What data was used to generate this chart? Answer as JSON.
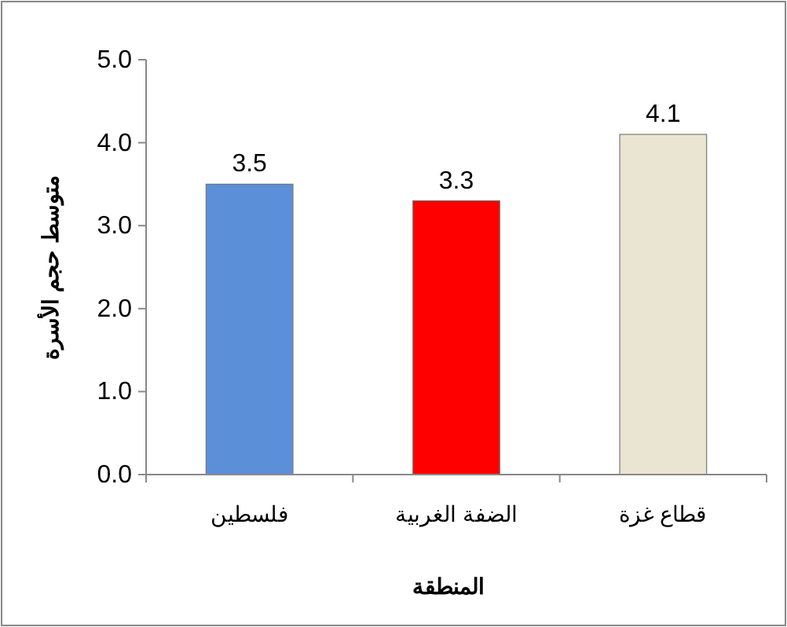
{
  "chart_data": {
    "type": "bar",
    "xlabel": "المنطقة",
    "ylabel": "متوسط حجم الأسرة",
    "categories": [
      "فلسطين",
      "الضفة الغربية",
      "قطاع غزة"
    ],
    "values": [
      3.5,
      3.3,
      4.1
    ],
    "colors": [
      "#5b8fd8",
      "#ff0000",
      "#e9e5d2"
    ],
    "ylim": [
      0,
      5
    ],
    "yticks": [
      {
        "value": 0,
        "label": "0.0"
      },
      {
        "value": 1,
        "label": "1.0"
      },
      {
        "value": 2,
        "label": "2.0"
      },
      {
        "value": 3,
        "label": "3.0"
      },
      {
        "value": 4,
        "label": "4.0"
      },
      {
        "value": 5,
        "label": "5.0"
      }
    ],
    "data_labels": true,
    "grid": false
  }
}
